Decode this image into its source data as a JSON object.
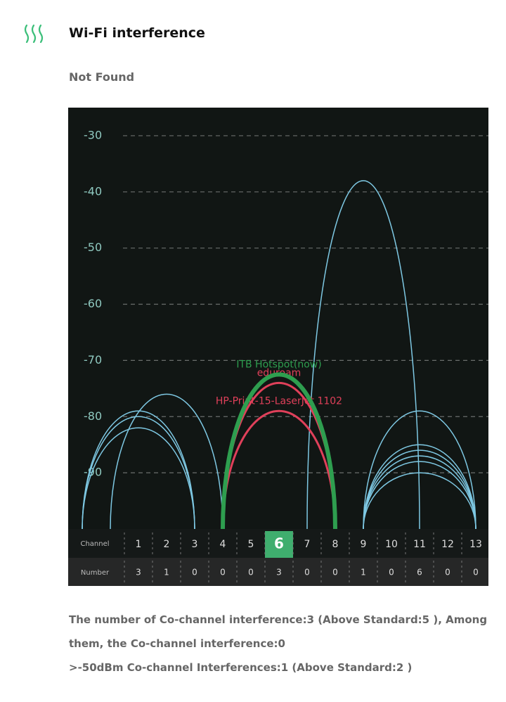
{
  "header": {
    "title": "Wi-Fi interference",
    "status": "Not Found"
  },
  "chart_data": {
    "type": "wifi",
    "ylim": [
      -100,
      -25
    ],
    "yticks": [
      -30,
      -40,
      -50,
      -60,
      -70,
      -80,
      -90
    ],
    "grid": true,
    "xlim": [
      -1.5,
      13.45
    ],
    "series": [
      {
        "channel": 1,
        "peak": -79,
        "color": "#7ec8e3"
      },
      {
        "channel": 1,
        "peak": -80,
        "color": "#7ec8e3"
      },
      {
        "channel": 1,
        "peak": -82,
        "color": "#7ec8e3"
      },
      {
        "channel": 2,
        "peak": -76,
        "color": "#7ec8e3"
      },
      {
        "channel": 9,
        "peak": -38,
        "color": "#7ec8e3"
      },
      {
        "channel": 11,
        "peak": -79,
        "color": "#7ec8e3"
      },
      {
        "channel": 11,
        "peak": -85,
        "color": "#7ec8e3"
      },
      {
        "channel": 11,
        "peak": -86,
        "color": "#7ec8e3"
      },
      {
        "channel": 11,
        "peak": -87,
        "color": "#7ec8e3"
      },
      {
        "channel": 11,
        "peak": -88,
        "color": "#7ec8e3"
      },
      {
        "channel": 11,
        "peak": -90,
        "color": "#7ec8e3"
      },
      {
        "name": "HP-Print-15-LaserJet 1102",
        "channel": 6,
        "peak": -79,
        "color": "#e0405a"
      },
      {
        "name": "eduroam",
        "channel": 6,
        "peak": -74,
        "color": "#e0405a"
      },
      {
        "name": "ITB Hotspot(now)",
        "channel": 6,
        "peak": -72.5,
        "color": "#2e9e4f",
        "current": true
      }
    ],
    "channel_label": "Channel",
    "number_label": "Number",
    "categories": [
      "1",
      "2",
      "3",
      "4",
      "5",
      "6",
      "7",
      "8",
      "9",
      "10",
      "11",
      "12",
      "13"
    ],
    "counts": [
      3,
      1,
      0,
      0,
      0,
      3,
      0,
      0,
      1,
      0,
      6,
      0,
      0
    ],
    "highlight_index": 5
  },
  "summary": [
    "The number of Co-channel interference:3 (Above Standard:5 ), Among them, the Co-channel interference:0",
    ">-50dBm Co-channel Interferences:1 (Above Standard:2 )"
  ]
}
